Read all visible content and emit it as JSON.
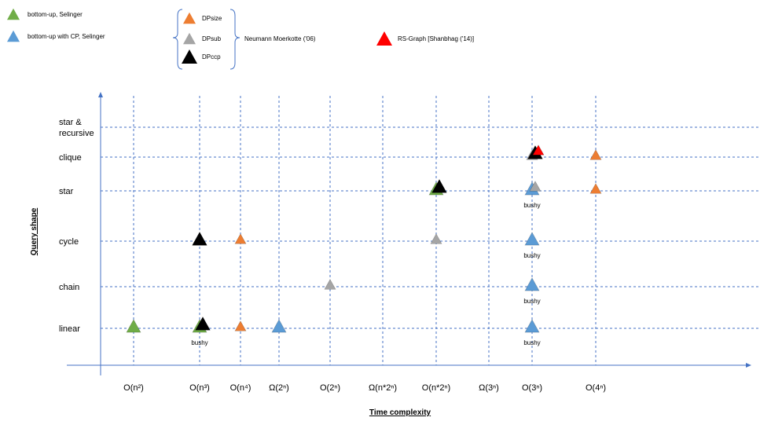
{
  "chart_data": {
    "type": "scatter",
    "xlabel": "Time complexity",
    "ylabel": "Query shape",
    "x_categories": [
      "O(n²)",
      "O(n³)",
      "O(n⁴)",
      "Ω(2ⁿ)",
      "O(2ⁿ)",
      "Ω(n*2ⁿ)",
      "O(n*2ⁿ)",
      "Ω(3ⁿ)",
      "O(3ⁿ)",
      "O(4ⁿ)"
    ],
    "y_categories": [
      "linear",
      "chain",
      "cycle",
      "star",
      "clique",
      "star & recursive"
    ],
    "grid": true,
    "legend": {
      "items": [
        {
          "series": "bottom-up, Selinger",
          "label": "bottom-up, Selinger",
          "color": "#70ad47"
        },
        {
          "series": "bottom-up with CP, Selinger",
          "label": "bottom-up with CP, Selinger",
          "color": "#5b9bd5"
        },
        {
          "series": "DPsize",
          "label": "DPsize",
          "color": "#ed7d31"
        },
        {
          "series": "DPsub",
          "label": "DPsub",
          "color": "#a5a5a5"
        },
        {
          "series": "DPccp",
          "label": "DPccp",
          "color": "#000000"
        },
        {
          "series": "RS-Graph",
          "label": "RS-Graph  [Shanbhag ('14)]",
          "color": "#ff0000"
        }
      ],
      "group_label": "Neumann Moerkotte ('06)"
    },
    "series": [
      {
        "name": "bottom-up, Selinger",
        "color": "#70ad47",
        "points": [
          {
            "x": "O(n²)",
            "y": "linear"
          },
          {
            "x": "O(n³)",
            "y": "linear",
            "note": "bushy"
          },
          {
            "x": "O(n*2ⁿ)",
            "y": "star"
          }
        ]
      },
      {
        "name": "bottom-up with CP, Selinger",
        "color": "#5b9bd5",
        "points": [
          {
            "x": "Ω(2ⁿ)",
            "y": "linear"
          },
          {
            "x": "O(3ⁿ)",
            "y": "linear",
            "note": "bushy"
          },
          {
            "x": "O(3ⁿ)",
            "y": "chain",
            "note": "bushy"
          },
          {
            "x": "O(3ⁿ)",
            "y": "cycle",
            "note": "bushy"
          },
          {
            "x": "O(3ⁿ)",
            "y": "star",
            "note": "bushy"
          }
        ]
      },
      {
        "name": "DPsize",
        "color": "#ed7d31",
        "points": [
          {
            "x": "O(n⁴)",
            "y": "linear"
          },
          {
            "x": "O(n⁴)",
            "y": "cycle"
          },
          {
            "x": "O(4ⁿ)",
            "y": "star"
          },
          {
            "x": "O(4ⁿ)",
            "y": "clique"
          }
        ]
      },
      {
        "name": "DPsub",
        "color": "#a5a5a5",
        "points": [
          {
            "x": "O(2ⁿ)",
            "y": "chain"
          },
          {
            "x": "O(n*2ⁿ)",
            "y": "cycle"
          },
          {
            "x": "O(3ⁿ)",
            "y": "star"
          },
          {
            "x": "O(3ⁿ)",
            "y": "clique"
          }
        ]
      },
      {
        "name": "DPccp",
        "color": "#000000",
        "points": [
          {
            "x": "O(n³)",
            "y": "linear"
          },
          {
            "x": "O(n³)",
            "y": "cycle"
          },
          {
            "x": "O(n*2ⁿ)",
            "y": "star"
          },
          {
            "x": "O(3ⁿ)",
            "y": "clique"
          }
        ]
      },
      {
        "name": "RS-Graph",
        "color": "#ff0000",
        "points": [
          {
            "x": "O(3ⁿ)",
            "y": "clique"
          }
        ]
      }
    ]
  }
}
